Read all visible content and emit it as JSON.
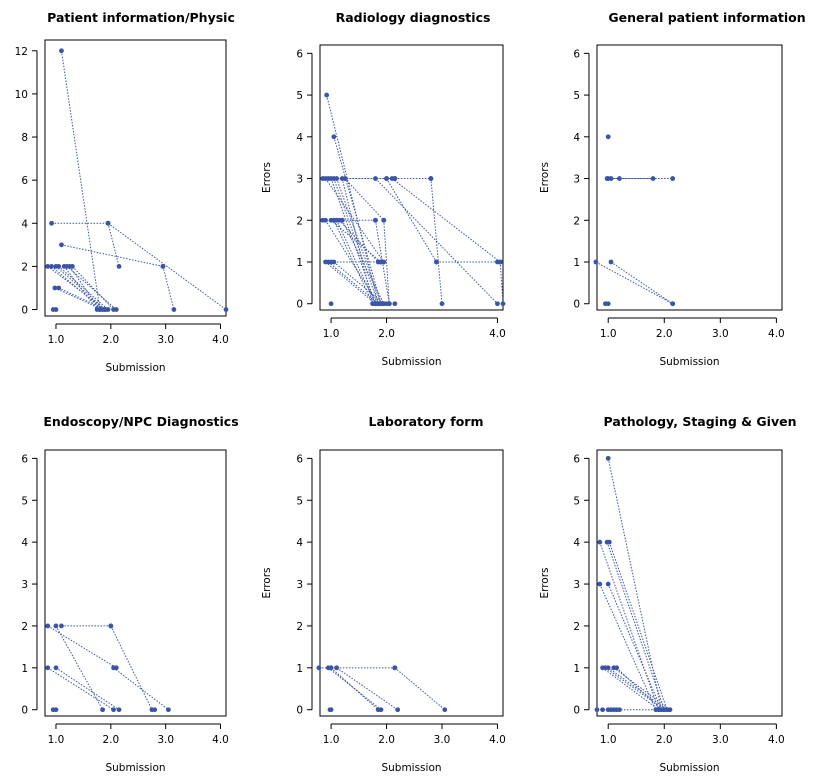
{
  "chart_data": [
    {
      "type": "scatter",
      "title": "Patient information/Physic",
      "xlabel": "Submission",
      "ylabel": "",
      "xlim": [
        0.8,
        4.1
      ],
      "ylim": [
        -0.3,
        12.5
      ],
      "yticks": [
        0,
        2,
        4,
        6,
        8,
        10,
        12
      ],
      "xticks": [
        "1.0",
        "2.0",
        "3.0",
        "4.0"
      ],
      "point_color": "#3a55a8",
      "series": [
        {
          "x": [
            1.1,
            1.8
          ],
          "y": [
            12,
            0
          ]
        },
        {
          "x": [
            0.92,
            1.95
          ],
          "y": [
            4,
            4
          ]
        },
        {
          "x": [
            1.95,
            4.1
          ],
          "y": [
            4,
            0
          ]
        },
        {
          "x": [
            1.1,
            2.95
          ],
          "y": [
            3,
            2
          ]
        },
        {
          "x": [
            2.95,
            3.15
          ],
          "y": [
            2,
            0
          ]
        },
        {
          "x": [
            1.95,
            2.15
          ],
          "y": [
            4,
            2
          ]
        },
        {
          "x": [
            0.92,
            1.85
          ],
          "y": [
            2,
            0
          ]
        },
        {
          "x": [
            1.0,
            1.9
          ],
          "y": [
            2,
            0
          ]
        },
        {
          "x": [
            1.05,
            1.95
          ],
          "y": [
            2,
            0
          ]
        },
        {
          "x": [
            1.15,
            1.75
          ],
          "y": [
            2,
            0
          ]
        },
        {
          "x": [
            1.25,
            1.8
          ],
          "y": [
            2,
            0
          ]
        },
        {
          "x": [
            0.98,
            1.85
          ],
          "y": [
            1,
            0
          ]
        },
        {
          "x": [
            1.05,
            1.9
          ],
          "y": [
            1,
            0
          ]
        },
        {
          "x": [
            0.95
          ],
          "y": [
            0
          ]
        },
        {
          "x": [
            1.0
          ],
          "y": [
            0
          ]
        },
        {
          "x": [
            0.85,
            1.9
          ],
          "y": [
            2,
            0
          ]
        },
        {
          "x": [
            1.3,
            2.05
          ],
          "y": [
            2,
            0
          ]
        },
        {
          "x": [
            1.2,
            2.1
          ],
          "y": [
            2,
            0
          ]
        }
      ]
    },
    {
      "type": "scatter",
      "title": "Radiology diagnostics",
      "xlabel": "Submission",
      "ylabel": "Errors",
      "xlim": [
        0.8,
        4.1
      ],
      "ylim": [
        -0.15,
        6.2
      ],
      "yticks": [
        0,
        1,
        2,
        3,
        4,
        5,
        6
      ],
      "xticks": [
        "1.0",
        "2.0",
        "4.0"
      ],
      "point_color": "#3a55a8",
      "series": [
        {
          "x": [
            0.92,
            1.85
          ],
          "y": [
            5,
            0
          ]
        },
        {
          "x": [
            1.05,
            1.9
          ],
          "y": [
            4,
            0
          ]
        },
        {
          "x": [
            0.85,
            2.15
          ],
          "y": [
            3,
            3
          ]
        },
        {
          "x": [
            2.15,
            2.8
          ],
          "y": [
            3,
            3
          ]
        },
        {
          "x": [
            2.8,
            3.0
          ],
          "y": [
            3,
            0
          ]
        },
        {
          "x": [
            0.9,
            1.95
          ],
          "y": [
            3,
            1
          ]
        },
        {
          "x": [
            0.95,
            2.0
          ],
          "y": [
            3,
            3
          ]
        },
        {
          "x": [
            2.0,
            2.9
          ],
          "y": [
            3,
            1
          ]
        },
        {
          "x": [
            2.9,
            4.0
          ],
          "y": [
            1,
            1
          ]
        },
        {
          "x": [
            1.0,
            1.8
          ],
          "y": [
            3,
            0
          ]
        },
        {
          "x": [
            1.05,
            1.85
          ],
          "y": [
            3,
            0
          ]
        },
        {
          "x": [
            1.1,
            1.9
          ],
          "y": [
            3,
            0
          ]
        },
        {
          "x": [
            1.2,
            1.75
          ],
          "y": [
            3,
            0
          ]
        },
        {
          "x": [
            1.25,
            1.95
          ],
          "y": [
            3,
            2
          ]
        },
        {
          "x": [
            1.95,
            2.05
          ],
          "y": [
            2,
            0
          ]
        },
        {
          "x": [
            0.85,
            1.8
          ],
          "y": [
            2,
            2
          ]
        },
        {
          "x": [
            1.8,
            2.05
          ],
          "y": [
            2,
            0
          ]
        },
        {
          "x": [
            0.9,
            1.85
          ],
          "y": [
            2,
            0
          ]
        },
        {
          "x": [
            1.0,
            1.9
          ],
          "y": [
            2,
            1
          ]
        },
        {
          "x": [
            1.05,
            1.75
          ],
          "y": [
            2,
            0
          ]
        },
        {
          "x": [
            1.1,
            1.8
          ],
          "y": [
            2,
            0
          ]
        },
        {
          "x": [
            1.15,
            1.85
          ],
          "y": [
            2,
            1
          ]
        },
        {
          "x": [
            1.2,
            1.95
          ],
          "y": [
            2,
            0
          ]
        },
        {
          "x": [
            0.9,
            1.8
          ],
          "y": [
            1,
            0
          ]
        },
        {
          "x": [
            0.95,
            1.85
          ],
          "y": [
            1,
            0
          ]
        },
        {
          "x": [
            1.0,
            1.9
          ],
          "y": [
            1,
            1
          ]
        },
        {
          "x": [
            1.05,
            1.95
          ],
          "y": [
            1,
            0
          ]
        },
        {
          "x": [
            1.8,
            4.0
          ],
          "y": [
            3,
            0
          ]
        },
        {
          "x": [
            2.1,
            4.05
          ],
          "y": [
            3,
            1
          ]
        },
        {
          "x": [
            4.05,
            4.1
          ],
          "y": [
            1,
            0
          ]
        },
        {
          "x": [
            1.0
          ],
          "y": [
            0
          ]
        },
        {
          "x": [
            2.0,
            2.15
          ],
          "y": [
            0,
            0
          ]
        }
      ]
    },
    {
      "type": "scatter",
      "title": "General patient information",
      "xlabel": "Submission",
      "ylabel": "Errors",
      "xlim": [
        0.8,
        4.1
      ],
      "ylim": [
        -0.15,
        6.2
      ],
      "yticks": [
        0,
        1,
        2,
        3,
        4,
        5,
        6
      ],
      "xticks": [
        "1.0",
        "2.0",
        "3.0",
        "4.0"
      ],
      "point_color": "#3a55a8",
      "series": [
        {
          "x": [
            0.98,
            2.15
          ],
          "y": [
            3,
            3
          ]
        },
        {
          "x": [
            1.0,
            1.8
          ],
          "y": [
            3,
            3
          ]
        },
        {
          "x": [
            1.05
          ],
          "y": [
            3
          ]
        },
        {
          "x": [
            1.2
          ],
          "y": [
            3
          ]
        },
        {
          "x": [
            1.0
          ],
          "y": [
            4
          ]
        },
        {
          "x": [
            0.78,
            2.15
          ],
          "y": [
            1,
            0
          ]
        },
        {
          "x": [
            1.05,
            2.15
          ],
          "y": [
            1,
            0
          ]
        },
        {
          "x": [
            0.95
          ],
          "y": [
            0
          ]
        },
        {
          "x": [
            1.0
          ],
          "y": [
            0
          ]
        }
      ]
    },
    {
      "type": "scatter",
      "title": "Endoscopy/NPC Diagnostics",
      "xlabel": "Submission",
      "ylabel": "",
      "xlim": [
        0.8,
        4.1
      ],
      "ylim": [
        -0.15,
        6.2
      ],
      "yticks": [
        0,
        1,
        2,
        3,
        4,
        5,
        6
      ],
      "xticks": [
        "1.0",
        "2.0",
        "3.0",
        "4.0"
      ],
      "point_color": "#3a55a8",
      "series": [
        {
          "x": [
            0.85,
            2.1
          ],
          "y": [
            2,
            1
          ]
        },
        {
          "x": [
            1.0,
            1.85
          ],
          "y": [
            2,
            0
          ]
        },
        {
          "x": [
            1.1,
            2.0
          ],
          "y": [
            2,
            2
          ]
        },
        {
          "x": [
            2.0,
            2.75
          ],
          "y": [
            2,
            0
          ]
        },
        {
          "x": [
            2.05,
            3.05
          ],
          "y": [
            1,
            0
          ]
        },
        {
          "x": [
            0.85,
            2.05
          ],
          "y": [
            1,
            0
          ]
        },
        {
          "x": [
            1.0,
            2.15
          ],
          "y": [
            1,
            0
          ]
        },
        {
          "x": [
            2.8
          ],
          "y": [
            0
          ]
        },
        {
          "x": [
            0.95,
            1.0
          ],
          "y": [
            0,
            0
          ]
        }
      ]
    },
    {
      "type": "scatter",
      "title": "Laboratory form",
      "xlabel": "Submission",
      "ylabel": "Errors",
      "xlim": [
        0.8,
        4.1
      ],
      "ylim": [
        -0.15,
        6.2
      ],
      "yticks": [
        0,
        1,
        2,
        3,
        4,
        5,
        6
      ],
      "xticks": [
        "1.0",
        "2.0",
        "3.0",
        "4.0"
      ],
      "point_color": "#3a55a8",
      "series": [
        {
          "x": [
            0.78,
            2.15
          ],
          "y": [
            1,
            1
          ]
        },
        {
          "x": [
            2.15,
            3.05
          ],
          "y": [
            1,
            0
          ]
        },
        {
          "x": [
            0.95,
            1.9
          ],
          "y": [
            1,
            0
          ]
        },
        {
          "x": [
            1.0,
            1.85
          ],
          "y": [
            1,
            0
          ]
        },
        {
          "x": [
            1.1,
            2.2
          ],
          "y": [
            1,
            0
          ]
        },
        {
          "x": [
            0.98,
            1.0
          ],
          "y": [
            0,
            0
          ]
        }
      ]
    },
    {
      "type": "scatter",
      "title": "Pathology, Staging & Given",
      "xlabel": "Submission",
      "ylabel": "Errors",
      "xlim": [
        0.8,
        4.1
      ],
      "ylim": [
        -0.15,
        6.2
      ],
      "yticks": [
        0,
        1,
        2,
        3,
        4,
        5,
        6
      ],
      "xticks": [
        "1.0",
        "2.0",
        "3.0",
        "4.0"
      ],
      "point_color": "#3a55a8",
      "series": [
        {
          "x": [
            1.0,
            1.95
          ],
          "y": [
            6,
            0
          ]
        },
        {
          "x": [
            0.85,
            1.9
          ],
          "y": [
            4,
            0
          ]
        },
        {
          "x": [
            0.98,
            2.0
          ],
          "y": [
            4,
            0
          ]
        },
        {
          "x": [
            1.02,
            2.05
          ],
          "y": [
            4,
            0
          ]
        },
        {
          "x": [
            0.85,
            1.85
          ],
          "y": [
            3,
            0
          ]
        },
        {
          "x": [
            1.0,
            1.95
          ],
          "y": [
            3,
            0
          ]
        },
        {
          "x": [
            0.9,
            1.9
          ],
          "y": [
            1,
            0
          ]
        },
        {
          "x": [
            0.95,
            2.0
          ],
          "y": [
            1,
            0
          ]
        },
        {
          "x": [
            1.0,
            2.05
          ],
          "y": [
            1,
            0
          ]
        },
        {
          "x": [
            1.1,
            2.1
          ],
          "y": [
            1,
            0
          ]
        },
        {
          "x": [
            1.15,
            1.95
          ],
          "y": [
            1,
            0
          ]
        },
        {
          "x": [
            0.8,
            2.1
          ],
          "y": [
            0,
            0
          ]
        },
        {
          "x": [
            0.9,
            1.0,
            1.05,
            1.1,
            1.15,
            1.2
          ],
          "y": [
            0,
            0,
            0,
            0,
            0,
            0
          ]
        }
      ]
    }
  ]
}
